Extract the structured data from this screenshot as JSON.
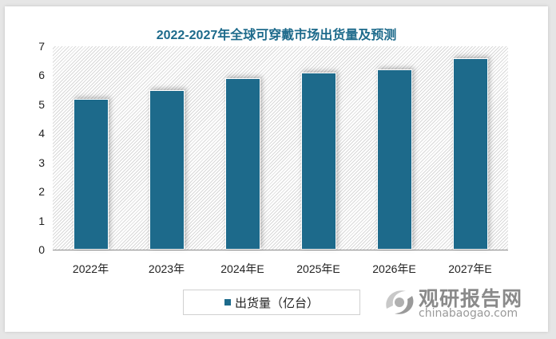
{
  "chart_data": {
    "type": "bar",
    "title": "2022-2027年全球可穿戴市场出货量及预测",
    "categories": [
      "2022年",
      "2023年",
      "2024年E",
      "2025年E",
      "2026年E",
      "2027年E"
    ],
    "series": [
      {
        "name": "出货量（亿台）",
        "values": [
          5.2,
          5.5,
          5.9,
          6.1,
          6.2,
          6.6
        ],
        "color": "#1d6a8b"
      }
    ],
    "xlabel": "",
    "ylabel": "",
    "ylim": [
      0,
      7
    ],
    "yticks": [
      "0",
      "1",
      "2",
      "3",
      "4",
      "5",
      "6",
      "7"
    ],
    "grid": false,
    "legend_position": "bottom"
  },
  "watermark": {
    "cn": "观研报告网",
    "en": "chinabaogao.com"
  }
}
